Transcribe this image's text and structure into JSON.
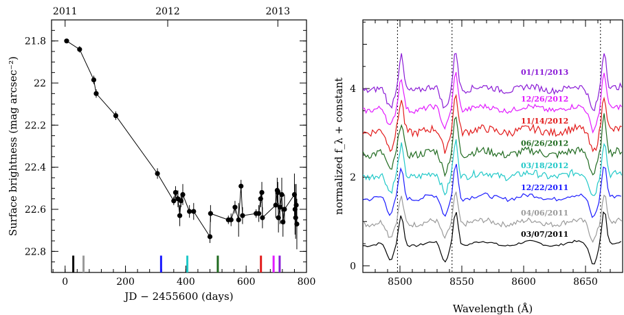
{
  "chart_data": [
    {
      "type": "scatter",
      "xlabel": "JD − 2455600 (days)",
      "ylabel": "Surface brightness (mag arcsec⁻²)",
      "xlim": [
        -45,
        800
      ],
      "ylim": [
        22.9,
        21.7
      ],
      "y_inverted": true,
      "x_ticks": [
        {
          "value": 0,
          "label": "0"
        },
        {
          "value": 200,
          "label": "200"
        },
        {
          "value": 400,
          "label": "400"
        },
        {
          "value": 600,
          "label": "600"
        },
        {
          "value": 800,
          "label": "800"
        }
      ],
      "y_ticks": [
        {
          "value": 21.8,
          "label": "21.8"
        },
        {
          "value": 22.0,
          "label": "22"
        },
        {
          "value": 22.2,
          "label": "22.2"
        },
        {
          "value": 22.4,
          "label": "22.4"
        },
        {
          "value": 22.6,
          "label": "22.6"
        },
        {
          "value": 22.8,
          "label": "22.8"
        }
      ],
      "year_ticks": [
        {
          "value": 0,
          "label": "2011"
        },
        {
          "value": 340,
          "label": "2012"
        },
        {
          "value": 705,
          "label": "2013"
        }
      ],
      "series": [
        {
          "marker": "circle",
          "connected": true,
          "points": [
            {
              "x": 5,
              "y": 21.8,
              "err": 0.01
            },
            {
              "x": 48,
              "y": 21.84,
              "err": 0.015
            },
            {
              "x": 95,
              "y": 21.985,
              "err": 0.02
            },
            {
              "x": 103,
              "y": 22.05,
              "err": 0.02
            },
            {
              "x": 168,
              "y": 22.155,
              "err": 0.02
            },
            {
              "x": 306,
              "y": 22.43,
              "err": 0.025
            },
            {
              "x": 360,
              "y": 22.56,
              "err": 0.02
            },
            {
              "x": 366,
              "y": 22.52,
              "err": 0.03
            },
            {
              "x": 374,
              "y": 22.55,
              "err": 0.04
            },
            {
              "x": 380,
              "y": 22.63,
              "err": 0.05
            },
            {
              "x": 384,
              "y": 22.56,
              "err": 0.03
            },
            {
              "x": 390,
              "y": 22.53,
              "err": 0.05
            },
            {
              "x": 412,
              "y": 22.61,
              "err": 0.03
            },
            {
              "x": 426,
              "y": 22.61,
              "err": 0.04
            },
            {
              "x": 480,
              "y": 22.73,
              "err": 0.03
            },
            {
              "x": 482,
              "y": 22.62,
              "err": 0.04
            },
            {
              "x": 541,
              "y": 22.65,
              "err": 0.02
            },
            {
              "x": 550,
              "y": 22.65,
              "err": 0.03
            },
            {
              "x": 563,
              "y": 22.59,
              "err": 0.03
            },
            {
              "x": 575,
              "y": 22.65,
              "err": 0.08
            },
            {
              "x": 583,
              "y": 22.49,
              "err": 0.03
            },
            {
              "x": 588,
              "y": 22.63,
              "err": 0.04
            },
            {
              "x": 633,
              "y": 22.62,
              "err": 0.02
            },
            {
              "x": 642,
              "y": 22.62,
              "err": 0.04
            },
            {
              "x": 648,
              "y": 22.55,
              "err": 0.04
            },
            {
              "x": 652,
              "y": 22.52,
              "err": 0.05
            },
            {
              "x": 654,
              "y": 22.64,
              "err": 0.05
            },
            {
              "x": 698,
              "y": 22.58,
              "err": 0.06
            },
            {
              "x": 703,
              "y": 22.51,
              "err": 0.06
            },
            {
              "x": 705,
              "y": 22.52,
              "err": 0.05
            },
            {
              "x": 707,
              "y": 22.64,
              "err": 0.07
            },
            {
              "x": 712,
              "y": 22.59,
              "err": 0.08
            },
            {
              "x": 718,
              "y": 22.53,
              "err": 0.08
            },
            {
              "x": 722,
              "y": 22.66,
              "err": 0.07
            },
            {
              "x": 727,
              "y": 22.6,
              "err": 0.07
            },
            {
              "x": 760,
              "y": 22.53,
              "err": 0.1
            },
            {
              "x": 762,
              "y": 22.6,
              "err": 0.12
            },
            {
              "x": 764,
              "y": 22.64,
              "err": 0.1
            },
            {
              "x": 766,
              "y": 22.58,
              "err": 0.1
            },
            {
              "x": 768,
              "y": 22.67,
              "err": 0.12
            }
          ]
        }
      ],
      "spectral_epoch_markers": [
        {
          "x": 27,
          "color": "#000000"
        },
        {
          "x": 61,
          "color": "#999999"
        },
        {
          "x": 318,
          "color": "#1a1aff"
        },
        {
          "x": 405,
          "color": "#1fc8c8"
        },
        {
          "x": 506,
          "color": "#1f6a1f"
        },
        {
          "x": 649,
          "color": "#e21a1a"
        },
        {
          "x": 691,
          "color": "#e21aff"
        },
        {
          "x": 711,
          "color": "#8a1ad6"
        }
      ],
      "marker_y_range": [
        22.82,
        22.9
      ]
    },
    {
      "type": "line",
      "xlabel": "Wavelength (Å)",
      "ylabel": "normalized f_λ + constant",
      "xlim": [
        8470,
        8680
      ],
      "ylim": [
        -0.15,
        5.55
      ],
      "x_ticks": [
        {
          "value": 8500,
          "label": "8500"
        },
        {
          "value": 8550,
          "label": "8550"
        },
        {
          "value": 8600,
          "label": "8600"
        },
        {
          "value": 8650,
          "label": "8650"
        }
      ],
      "y_ticks": [
        {
          "value": 0,
          "label": "0"
        },
        {
          "value": 2,
          "label": "2"
        },
        {
          "value": 4,
          "label": "4"
        }
      ],
      "minor_y_ticks": [
        1,
        3,
        5
      ],
      "reference_lines": [
        8498.0,
        8542.1,
        8662.1
      ],
      "series": [
        {
          "name": "03/07/2011",
          "color": "#000000",
          "offset": 0.5,
          "noise": 0.025,
          "amp": 0.95,
          "label_y": 0.72
        },
        {
          "name": "04/06/2011",
          "color": "#9a9a9a",
          "offset": 0.98,
          "noise": 0.06,
          "amp": 0.82,
          "label_y": 1.2
        },
        {
          "name": "12/22/2011",
          "color": "#1a1aff",
          "offset": 1.55,
          "noise": 0.05,
          "amp": 0.95,
          "label_y": 1.77
        },
        {
          "name": "03/18/2012",
          "color": "#1fc8c8",
          "offset": 2.05,
          "noise": 0.08,
          "amp": 0.95,
          "label_y": 2.27
        },
        {
          "name": "06/26/2012",
          "color": "#1f6a1f",
          "offset": 2.55,
          "noise": 0.09,
          "amp": 1.0,
          "label_y": 2.77
        },
        {
          "name": "11/14/2012",
          "color": "#e21a1a",
          "offset": 3.05,
          "noise": 0.09,
          "amp": 1.0,
          "label_y": 3.27
        },
        {
          "name": "12/26/2012",
          "color": "#e21aff",
          "offset": 3.55,
          "noise": 0.06,
          "amp": 1.0,
          "label_y": 3.77
        },
        {
          "name": "01/11/2013",
          "color": "#8a1ad6",
          "offset": 4.0,
          "noise": 0.07,
          "amp": 1.05,
          "label_y": 4.37
        }
      ]
    }
  ]
}
